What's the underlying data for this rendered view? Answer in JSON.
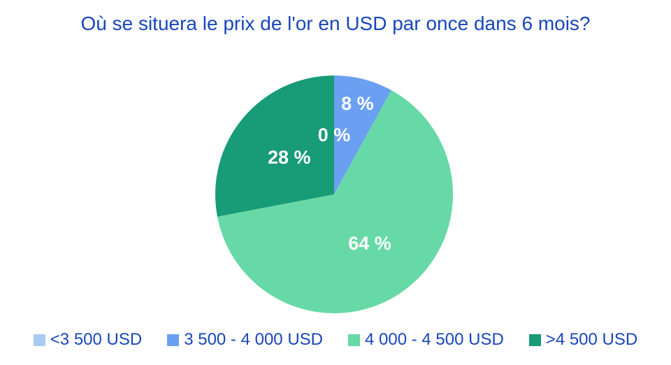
{
  "chart_data": {
    "type": "pie",
    "title": "Où se situera le prix de l'or en USD par once dans 6 mois?",
    "unit": "%",
    "direction": "clockwise",
    "start_angle_deg": 0,
    "legend_position": "bottom",
    "title_color": "#1846bb",
    "slice_label_color": "#ffffff",
    "slices": [
      {
        "label": "<3 500 USD",
        "value": 0,
        "display": "0 %",
        "color": "#a9caf2"
      },
      {
        "label": "3 500 - 4 000 USD",
        "value": 8,
        "display": "8 %",
        "color": "#6b9ff2"
      },
      {
        "label": "4 000 - 4 500 USD",
        "value": 64,
        "display": "64 %",
        "color": "#66d9a6"
      },
      {
        "label": ">4 500 USD",
        "value": 28,
        "display": "28 %",
        "color": "#189b77"
      }
    ]
  }
}
